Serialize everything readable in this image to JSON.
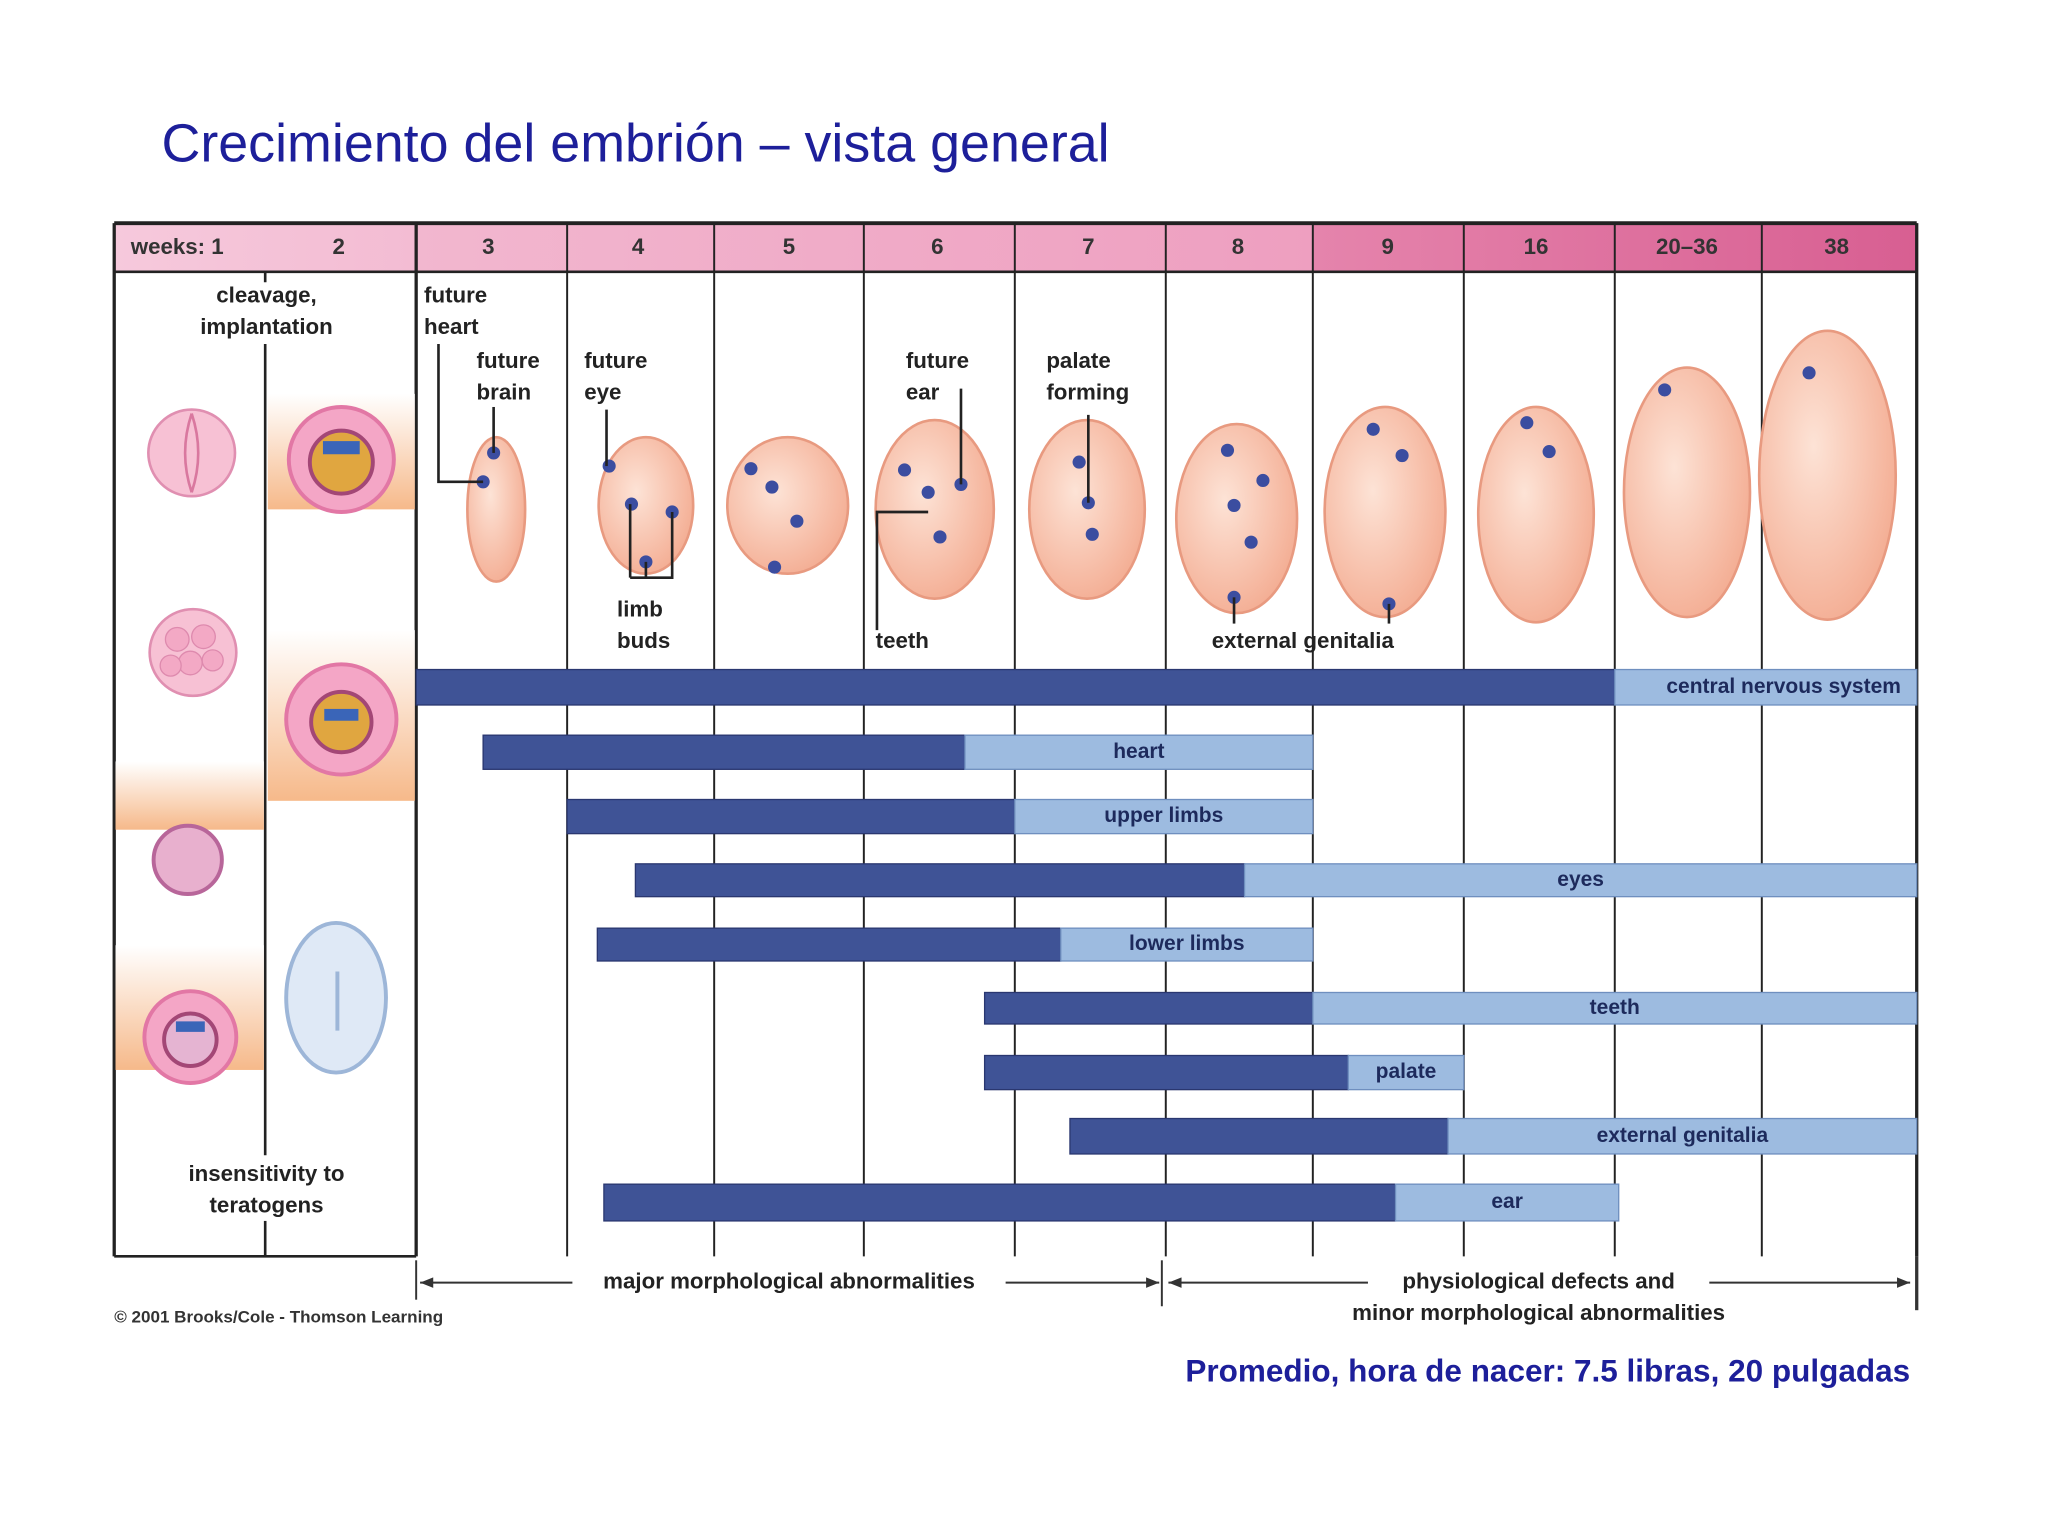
{
  "title": "Crecimiento del embrión – vista general",
  "weeks_header": [
    "weeks: 1",
    "2",
    "3",
    "4",
    "5",
    "6",
    "7",
    "8",
    "9",
    "16",
    "20–36",
    "38"
  ],
  "annotations": [
    {
      "lines": [
        "cleavage,",
        "implantation"
      ]
    },
    {
      "lines": [
        "future",
        "heart"
      ]
    },
    {
      "lines": [
        "future",
        "brain"
      ]
    },
    {
      "lines": [
        "future",
        "eye"
      ]
    },
    {
      "lines": [
        "limb",
        "buds"
      ]
    },
    {
      "lines": [
        "future",
        "ear"
      ]
    },
    {
      "lines": [
        "palate",
        "forming"
      ]
    },
    {
      "lines": [
        "teeth"
      ]
    },
    {
      "lines": [
        "external genitalia"
      ]
    },
    {
      "lines": [
        "insensitivity to",
        "teratogens"
      ]
    }
  ],
  "bars": [
    {
      "label": "central nervous system"
    },
    {
      "label": "heart"
    },
    {
      "label": "upper limbs"
    },
    {
      "label": "eyes"
    },
    {
      "label": "lower limbs"
    },
    {
      "label": "teeth"
    },
    {
      "label": "palate"
    },
    {
      "label": "external genitalia"
    },
    {
      "label": "ear"
    }
  ],
  "periods": [
    {
      "lines": [
        "major morphological abnormalities"
      ]
    },
    {
      "lines": [
        "physiological defects and",
        "minor morphological abnormalities"
      ]
    }
  ],
  "credit": "© 2001 Brooks/Cole - Thomson Learning",
  "footer": "Promedio, hora de nacer: 7.5 libras, 20 pulgadas"
}
